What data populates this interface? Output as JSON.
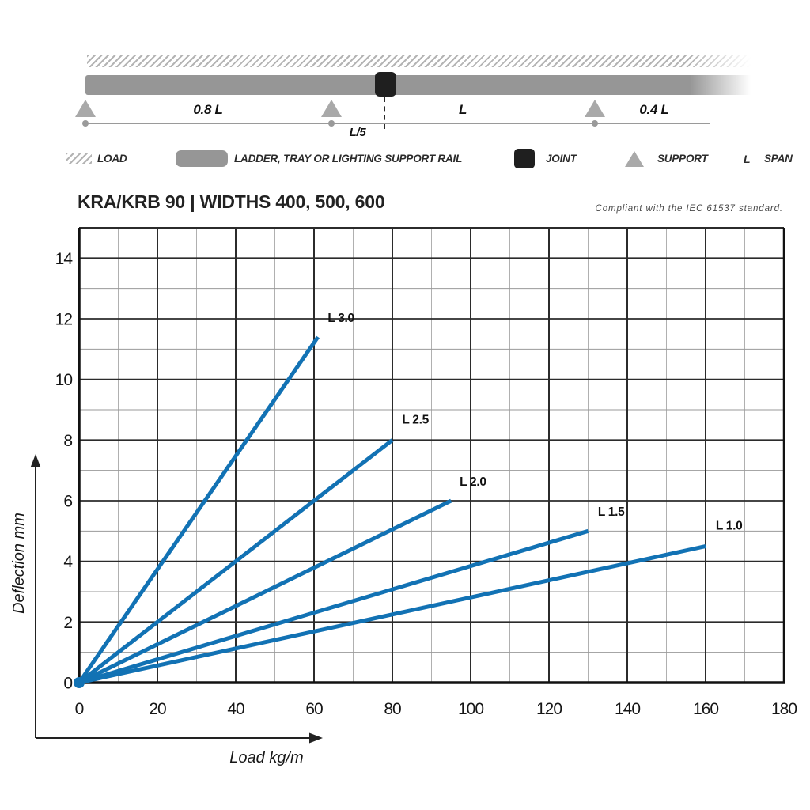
{
  "header": {
    "title": "KRA/KRB 90 | WIDTHS 400, 500, 600",
    "compliance_note": "Compliant with the IEC 61537 standard."
  },
  "diagram": {
    "span_labels": [
      "0.8 L",
      "L/5",
      "L",
      "0.4 L"
    ]
  },
  "legend": {
    "items": [
      {
        "icon": "load-hatch-icon",
        "label": "LOAD"
      },
      {
        "icon": "rail-bar-icon",
        "label": "LADDER, TRAY OR LIGHTING SUPPORT RAIL"
      },
      {
        "icon": "joint-square-icon",
        "label": "JOINT"
      },
      {
        "icon": "support-triangle-icon",
        "label": "SUPPORT"
      },
      {
        "icon": "span-letter",
        "symbol": "L",
        "label": "SPAN"
      }
    ]
  },
  "colors": {
    "line_blue": "#1272b4",
    "beam_gray": "#969696",
    "joint_black": "#1f1f1f",
    "support_gray": "#a9a9a9",
    "hatch_gray": "#b4b4b4",
    "grid_minor": "#b0b0b0",
    "grid_major": "#2b2b2b",
    "axis_black": "#111111"
  },
  "chart_data": {
    "type": "line",
    "title": "KRA/KRB 90 | WIDTHS 400, 500, 600",
    "xlabel": "Load kg/m",
    "ylabel": "Deflection mm",
    "xlim": [
      0,
      180
    ],
    "ylim": [
      0,
      15
    ],
    "xticks": [
      0,
      20,
      40,
      60,
      80,
      100,
      120,
      140,
      160,
      180
    ],
    "yticks": [
      0,
      2,
      4,
      6,
      8,
      10,
      12,
      14
    ],
    "grid": {
      "minor_every_x": 10,
      "major_every_x": 20,
      "minor_every_y": 1,
      "major_every_y": 2
    },
    "legend_position": "inline-labels",
    "line_color": "#1272b4",
    "series": [
      {
        "name": "L 3.0",
        "points": [
          [
            0,
            0
          ],
          [
            61,
            11.4
          ]
        ],
        "label_pos": [
          63.5,
          11.9
        ]
      },
      {
        "name": "L 2.5",
        "points": [
          [
            0,
            0
          ],
          [
            80,
            8.0
          ]
        ],
        "label_pos": [
          82.5,
          8.55
        ]
      },
      {
        "name": "L 2.0",
        "points": [
          [
            0,
            0
          ],
          [
            95,
            6.0
          ]
        ],
        "label_pos": [
          97.2,
          6.5
        ]
      },
      {
        "name": "L 1.5",
        "points": [
          [
            0,
            0
          ],
          [
            130,
            5.0
          ]
        ],
        "label_pos": [
          132.5,
          5.5
        ]
      },
      {
        "name": "L 1.0",
        "points": [
          [
            0,
            0
          ],
          [
            160,
            4.5
          ]
        ],
        "label_pos": [
          162.6,
          5.05
        ]
      }
    ]
  }
}
